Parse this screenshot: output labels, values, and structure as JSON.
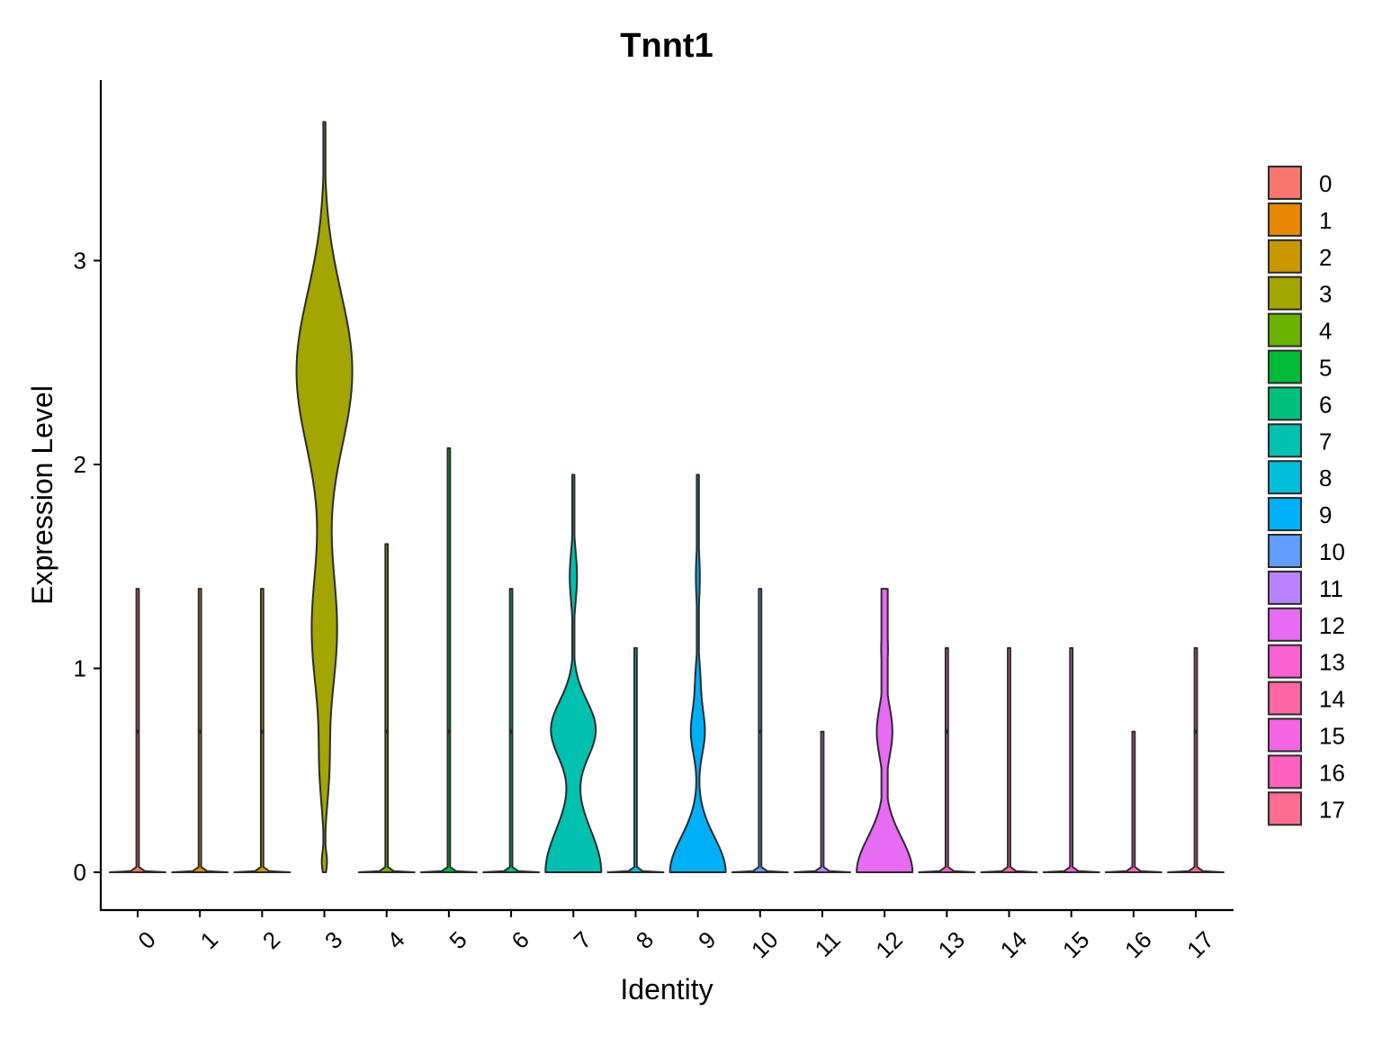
{
  "chart_data": {
    "type": "violin",
    "title": "Tnnt1",
    "xlabel": "Identity",
    "ylabel": "Expression Level",
    "ylim": [
      -0.18,
      3.8
    ],
    "y_ticks": [
      0,
      1,
      2,
      3
    ],
    "categories": [
      "0",
      "1",
      "2",
      "3",
      "4",
      "5",
      "6",
      "7",
      "8",
      "9",
      "10",
      "11",
      "12",
      "13",
      "14",
      "15",
      "16",
      "17"
    ],
    "colors": [
      "#F8766D",
      "#E58700",
      "#C99800",
      "#A3A500",
      "#6BB100",
      "#00BA38",
      "#00BF7D",
      "#00C0AF",
      "#00BCD8",
      "#00B0F6",
      "#619CFF",
      "#B983FF",
      "#E76BF3",
      "#FD61D1",
      "#FF67A4",
      "#F564E3",
      "#FF62BC",
      "#FF6C91"
    ],
    "legend": {
      "position": "right",
      "labels": [
        "0",
        "1",
        "2",
        "3",
        "4",
        "5",
        "6",
        "7",
        "8",
        "9",
        "10",
        "11",
        "12",
        "13",
        "14",
        "15",
        "16",
        "17"
      ]
    },
    "series": [
      {
        "name": "0",
        "max": 1.39
      },
      {
        "name": "1",
        "max": 1.39
      },
      {
        "name": "2",
        "max": 1.39
      },
      {
        "name": "3",
        "max": 3.68
      },
      {
        "name": "4",
        "max": 1.61
      },
      {
        "name": "5",
        "max": 2.08
      },
      {
        "name": "6",
        "max": 1.39
      },
      {
        "name": "7",
        "max": 1.95
      },
      {
        "name": "8",
        "max": 1.1
      },
      {
        "name": "9",
        "max": 1.95
      },
      {
        "name": "10",
        "max": 1.39
      },
      {
        "name": "11",
        "max": 0.69
      },
      {
        "name": "12",
        "max": 1.39
      },
      {
        "name": "13",
        "max": 1.1
      },
      {
        "name": "14",
        "max": 1.1
      },
      {
        "name": "15",
        "max": 1.1
      },
      {
        "name": "16",
        "max": 0.69
      },
      {
        "name": "17",
        "max": 1.1
      }
    ]
  }
}
